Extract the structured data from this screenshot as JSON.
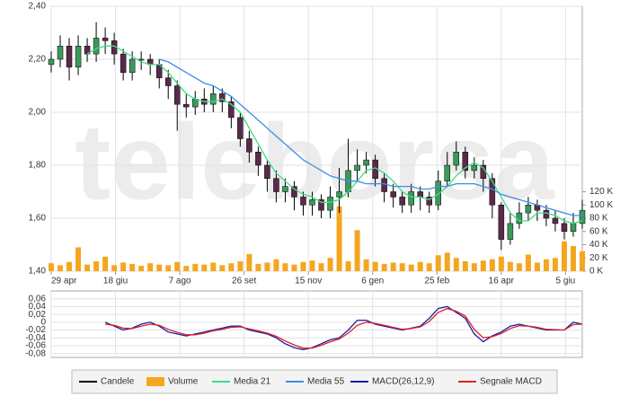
{
  "chart_data": [
    {
      "type": "candlestick",
      "watermark": "teleborsa",
      "x": [
        0,
        7,
        14,
        21,
        28,
        35,
        42,
        49,
        56,
        63,
        70,
        77,
        84,
        91,
        98,
        105,
        112,
        119,
        126,
        133,
        140,
        147,
        154,
        161,
        168,
        175,
        182,
        189,
        196,
        203,
        210,
        217,
        224,
        231,
        238,
        245,
        252,
        259,
        266,
        273,
        280,
        287,
        294,
        301,
        308,
        315,
        322,
        329,
        336,
        343,
        350,
        357,
        364,
        371,
        378,
        385,
        392,
        399,
        406,
        413
      ],
      "xlim": [
        0,
        413
      ],
      "xticks": [
        {
          "value": 0,
          "label": "29 apr"
        },
        {
          "value": 50,
          "label": "18 giu"
        },
        {
          "value": 100,
          "label": "7 ago"
        },
        {
          "value": 150,
          "label": "26 set"
        },
        {
          "value": 200,
          "label": "15 nov"
        },
        {
          "value": 250,
          "label": "6 gen"
        },
        {
          "value": 300,
          "label": "25 feb"
        },
        {
          "value": 350,
          "label": "16 apr"
        },
        {
          "value": 400,
          "label": "5 giu"
        }
      ],
      "ylim": [
        1.4,
        2.4
      ],
      "yticks": [
        {
          "value": 1.4,
          "label": "1,40"
        },
        {
          "value": 1.6,
          "label": "1,60"
        },
        {
          "value": 1.8,
          "label": "1,80"
        },
        {
          "value": 2.0,
          "label": "2,00"
        },
        {
          "value": 2.2,
          "label": "2,20"
        },
        {
          "value": 2.4,
          "label": "2,40"
        }
      ],
      "y2lim": [
        0,
        400000
      ],
      "y2ticks": [
        {
          "value": 0,
          "label": "0 K"
        },
        {
          "value": 20000,
          "label": "20 K"
        },
        {
          "value": 40000,
          "label": "40 K"
        },
        {
          "value": 60000,
          "label": "60 K"
        },
        {
          "value": 80000,
          "label": "80 K"
        },
        {
          "value": 100000,
          "label": "100 K"
        },
        {
          "value": 120000,
          "label": "120 K"
        }
      ],
      "grid": true,
      "candles": {
        "name": "Candele",
        "color": "#000000",
        "up_color": "#3a9a5a",
        "down_color": "#5a2a4a",
        "open": [
          2.18,
          2.2,
          2.25,
          2.17,
          2.25,
          2.22,
          2.28,
          2.27,
          2.22,
          2.15,
          2.2,
          2.2,
          2.18,
          2.13,
          2.1,
          2.03,
          2.02,
          2.05,
          2.03,
          2.07,
          2.04,
          1.98,
          1.9,
          1.85,
          1.8,
          1.75,
          1.7,
          1.72,
          1.68,
          1.65,
          1.67,
          1.63,
          1.68,
          1.7,
          1.78,
          1.8,
          1.82,
          1.75,
          1.7,
          1.68,
          1.65,
          1.7,
          1.68,
          1.65,
          1.74,
          1.8,
          1.85,
          1.78,
          1.8,
          1.75,
          1.65,
          1.52,
          1.58,
          1.62,
          1.65,
          1.63,
          1.6,
          1.58,
          1.55,
          1.58
        ],
        "high": [
          2.23,
          2.29,
          2.28,
          2.29,
          2.28,
          2.34,
          2.32,
          2.3,
          2.24,
          2.23,
          2.23,
          2.22,
          2.2,
          2.16,
          2.12,
          2.07,
          2.08,
          2.09,
          2.1,
          2.09,
          2.06,
          2.0,
          1.93,
          1.87,
          1.82,
          1.78,
          1.75,
          1.74,
          1.7,
          1.7,
          1.69,
          1.72,
          1.79,
          1.9,
          1.86,
          1.85,
          1.84,
          1.77,
          1.73,
          1.7,
          1.73,
          1.72,
          1.7,
          1.78,
          1.85,
          1.89,
          1.87,
          1.83,
          1.82,
          1.77,
          1.66,
          1.62,
          1.66,
          1.68,
          1.67,
          1.65,
          1.63,
          1.6,
          1.62,
          1.67
        ],
        "low": [
          2.15,
          2.17,
          2.12,
          2.14,
          2.19,
          2.19,
          2.22,
          2.18,
          2.12,
          2.12,
          2.16,
          2.14,
          2.09,
          2.05,
          1.93,
          1.98,
          1.99,
          2.0,
          2.0,
          2.0,
          1.94,
          1.87,
          1.81,
          1.76,
          1.7,
          1.66,
          1.66,
          1.63,
          1.61,
          1.61,
          1.6,
          1.6,
          1.62,
          1.68,
          1.74,
          1.77,
          1.72,
          1.66,
          1.64,
          1.62,
          1.62,
          1.63,
          1.62,
          1.63,
          1.72,
          1.78,
          1.75,
          1.75,
          1.7,
          1.6,
          1.48,
          1.5,
          1.56,
          1.59,
          1.59,
          1.57,
          1.55,
          1.52,
          1.53,
          1.56
        ],
        "close": [
          2.2,
          2.25,
          2.17,
          2.25,
          2.22,
          2.28,
          2.27,
          2.22,
          2.15,
          2.2,
          2.2,
          2.18,
          2.13,
          2.1,
          2.03,
          2.02,
          2.05,
          2.03,
          2.07,
          2.04,
          1.98,
          1.9,
          1.85,
          1.8,
          1.75,
          1.7,
          1.72,
          1.68,
          1.65,
          1.67,
          1.63,
          1.68,
          1.7,
          1.78,
          1.8,
          1.82,
          1.75,
          1.7,
          1.68,
          1.65,
          1.7,
          1.68,
          1.65,
          1.74,
          1.8,
          1.85,
          1.78,
          1.8,
          1.75,
          1.65,
          1.52,
          1.58,
          1.62,
          1.65,
          1.63,
          1.6,
          1.58,
          1.55,
          1.58,
          1.63
        ]
      },
      "series": [
        {
          "name": "Volume",
          "color": "#f5a61f",
          "axis": "y2",
          "kind": "bar",
          "values": [
            12000,
            9000,
            14000,
            36000,
            10000,
            15000,
            22000,
            9000,
            13000,
            11000,
            8000,
            12000,
            10000,
            9000,
            14000,
            8000,
            11000,
            10000,
            13000,
            9000,
            12000,
            15000,
            26000,
            11000,
            13000,
            18000,
            12000,
            10000,
            14000,
            16000,
            12000,
            20000,
            98000,
            15000,
            62000,
            18000,
            14000,
            11000,
            13000,
            12000,
            10000,
            14000,
            12000,
            24000,
            28000,
            20000,
            15000,
            12000,
            16000,
            18000,
            22000,
            14000,
            12000,
            25000,
            13000,
            18000,
            20000,
            45000,
            38000,
            30000
          ]
        },
        {
          "name": "Media 21",
          "color": "#3ddc84",
          "kind": "line",
          "values": [
            null,
            null,
            null,
            null,
            2.22,
            2.24,
            2.25,
            2.25,
            2.23,
            2.21,
            2.19,
            2.18,
            2.18,
            2.15,
            2.11,
            2.07,
            2.05,
            2.04,
            2.04,
            2.05,
            2.03,
            2.0,
            1.94,
            1.88,
            1.82,
            1.77,
            1.74,
            1.71,
            1.69,
            1.68,
            1.66,
            1.66,
            1.67,
            1.7,
            1.74,
            1.78,
            1.79,
            1.77,
            1.74,
            1.7,
            1.68,
            1.68,
            1.67,
            1.69,
            1.72,
            1.76,
            1.79,
            1.81,
            1.79,
            1.74,
            1.68,
            1.62,
            1.59,
            1.59,
            1.62,
            1.62,
            1.61,
            1.59,
            1.58,
            1.59
          ]
        },
        {
          "name": "Media 55",
          "color": "#3a8ee6",
          "kind": "line",
          "values": [
            null,
            null,
            null,
            null,
            null,
            null,
            null,
            null,
            null,
            null,
            null,
            null,
            2.2,
            2.19,
            2.17,
            2.15,
            2.13,
            2.11,
            2.1,
            2.08,
            2.06,
            2.03,
            2.0,
            1.97,
            1.94,
            1.91,
            1.88,
            1.85,
            1.82,
            1.8,
            1.78,
            1.76,
            1.75,
            1.74,
            1.74,
            1.73,
            1.73,
            1.73,
            1.72,
            1.72,
            1.72,
            1.71,
            1.71,
            1.72,
            1.72,
            1.73,
            1.73,
            1.73,
            1.72,
            1.71,
            1.69,
            1.68,
            1.67,
            1.66,
            1.65,
            1.64,
            1.63,
            1.62,
            1.61,
            1.61
          ]
        }
      ]
    },
    {
      "type": "line",
      "x": [
        0,
        7,
        14,
        21,
        28,
        35,
        42,
        49,
        56,
        63,
        70,
        77,
        84,
        91,
        98,
        105,
        112,
        119,
        126,
        133,
        140,
        147,
        154,
        161,
        168,
        175,
        182,
        189,
        196,
        203,
        210,
        217,
        224,
        231,
        238,
        245,
        252,
        259,
        266,
        273,
        280,
        287,
        294,
        301,
        308,
        315,
        322,
        329,
        336,
        343,
        350,
        357,
        364,
        371,
        378,
        385,
        392,
        399,
        406,
        413
      ],
      "xlim": [
        0,
        413
      ],
      "ylim": [
        -0.09,
        0.08
      ],
      "yticks": [
        {
          "value": 0.06,
          "label": "0,06"
        },
        {
          "value": 0.04,
          "label": "0,04"
        },
        {
          "value": 0.02,
          "label": "0,02"
        },
        0,
        {
          "value": -0.02,
          "label": "-0,02"
        },
        {
          "value": -0.04,
          "label": "-0,04"
        },
        {
          "value": -0.06,
          "label": "-0,06"
        },
        {
          "value": -0.08,
          "label": "-0,08"
        }
      ],
      "grid": true,
      "series": [
        {
          "name": "MACD(26,12,9)",
          "color": "#1a1aa8",
          "values": [
            null,
            null,
            null,
            null,
            null,
            null,
            0.0,
            -0.01,
            -0.02,
            -0.015,
            -0.005,
            0.0,
            -0.01,
            -0.025,
            -0.03,
            -0.035,
            -0.03,
            -0.025,
            -0.02,
            -0.015,
            -0.01,
            -0.01,
            -0.02,
            -0.025,
            -0.03,
            -0.04,
            -0.055,
            -0.065,
            -0.07,
            -0.065,
            -0.055,
            -0.045,
            -0.04,
            -0.02,
            0.005,
            0.005,
            -0.005,
            -0.01,
            -0.015,
            -0.02,
            -0.015,
            -0.01,
            0.01,
            0.035,
            0.04,
            0.025,
            0.01,
            -0.03,
            -0.05,
            -0.035,
            -0.025,
            -0.01,
            -0.005,
            -0.01,
            -0.015,
            -0.02,
            -0.02,
            -0.02,
            0.0,
            -0.005
          ]
        },
        {
          "name": "Segnale MACD",
          "color": "#e02020",
          "values": [
            null,
            null,
            null,
            null,
            null,
            null,
            -0.005,
            -0.008,
            -0.015,
            -0.016,
            -0.01,
            -0.005,
            -0.008,
            -0.018,
            -0.026,
            -0.032,
            -0.032,
            -0.028,
            -0.022,
            -0.018,
            -0.013,
            -0.012,
            -0.017,
            -0.022,
            -0.028,
            -0.036,
            -0.048,
            -0.058,
            -0.066,
            -0.066,
            -0.059,
            -0.05,
            -0.043,
            -0.028,
            -0.008,
            0.0,
            -0.003,
            -0.008,
            -0.013,
            -0.018,
            -0.016,
            -0.012,
            0.002,
            0.025,
            0.035,
            0.028,
            0.016,
            -0.018,
            -0.04,
            -0.037,
            -0.029,
            -0.016,
            -0.009,
            -0.01,
            -0.013,
            -0.018,
            -0.019,
            -0.02,
            -0.006,
            -0.005
          ]
        }
      ]
    }
  ]
}
